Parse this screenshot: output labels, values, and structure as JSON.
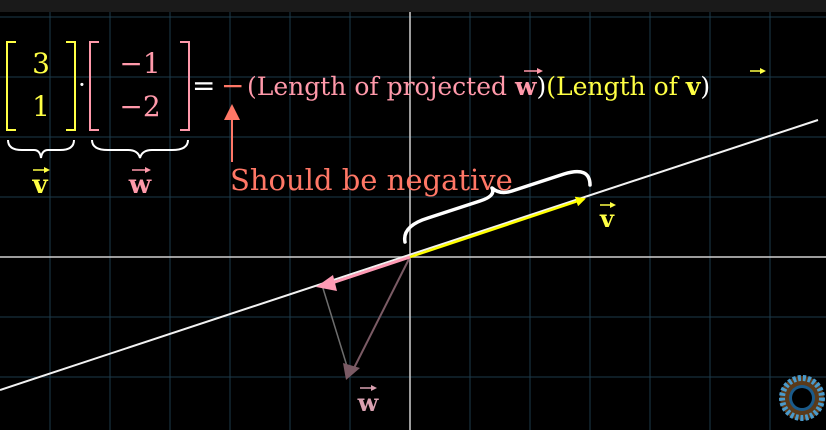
{
  "colors": {
    "background": "#000000",
    "topbar": "#1a1a1a",
    "grid": "#1c3a4a",
    "axis": "#cfcfcf",
    "line": "#f2f2f2",
    "v_color": "#ffff00",
    "w_color": "#f4a0b0",
    "w_faded": "#7a5a64",
    "projection": "#ff9ab4",
    "annotation": "#ff7766",
    "brace": "#ffffff",
    "v_text": "#ffff44",
    "w_text": "#ff99aa"
  },
  "equation": {
    "v_top": "3",
    "v_bottom": "1",
    "dot": "·",
    "w_top": "−1",
    "w_bottom": "−2",
    "equals": "=",
    "sign": "−",
    "text_projected_prefix": "(Length of projected ",
    "w_symbol": "w",
    "text_close_paren": ")",
    "text_length_of_prefix": "(Length of ",
    "v_symbol": "v"
  },
  "labels": {
    "v_under_bracket": "v",
    "w_under_bracket": "w",
    "annotation": "Should be negative",
    "v_vector": "v",
    "w_vector": "w"
  },
  "icons": {
    "logo": "pi-creature-eye-icon"
  }
}
